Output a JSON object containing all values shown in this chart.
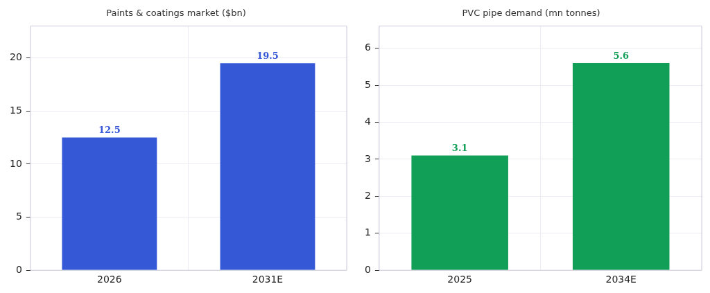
{
  "chart_data": [
    {
      "type": "bar",
      "title": "Paints & coatings market ($bn)",
      "categories": [
        "2026",
        "2031E"
      ],
      "series": [
        {
          "color": "#3558d6",
          "values": [
            12.5,
            19.5
          ]
        }
      ],
      "ylim": [
        0,
        23
      ],
      "yticks": [
        0,
        5,
        10,
        15,
        20
      ],
      "grid": true,
      "data_labels": true
    },
    {
      "type": "bar",
      "title": "PVC pipe demand (mn tonnes)",
      "categories": [
        "2025",
        "2034E"
      ],
      "series": [
        {
          "color": "#119f57",
          "values": [
            3.1,
            5.6
          ]
        }
      ],
      "ylim": [
        0,
        6.6
      ],
      "yticks": [
        0,
        1,
        2,
        3,
        4,
        5,
        6
      ],
      "grid": true,
      "data_labels": true
    }
  ]
}
